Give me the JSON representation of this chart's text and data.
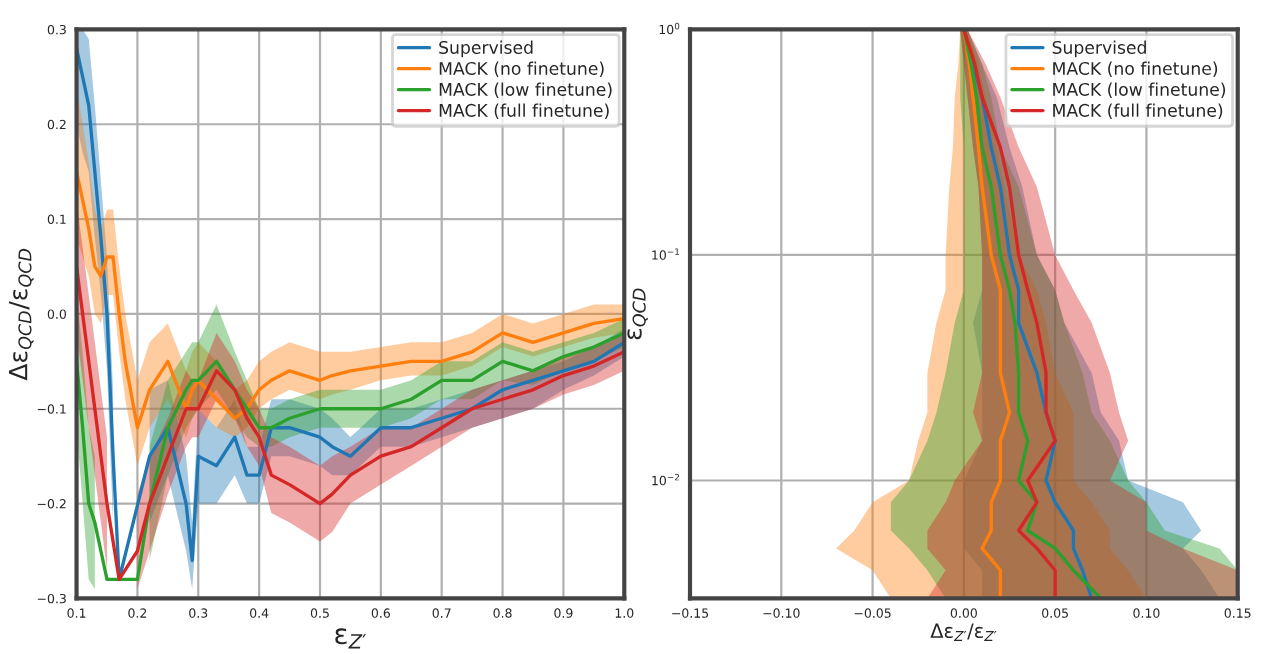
{
  "chart_data": [
    {
      "type": "line",
      "xlabel": "ε$_{Z′}$",
      "ylabel": "Δε$_{QCD}$/ε$_{QCD}$",
      "grid": true,
      "legend": "top right",
      "marker": "none",
      "line_style": "solid",
      "x": [
        0.1,
        0.11,
        0.12,
        0.13,
        0.14,
        0.15,
        0.16,
        0.17,
        0.18,
        0.2,
        0.22,
        0.25,
        0.28,
        0.29,
        0.3,
        0.33,
        0.36,
        0.38,
        0.4,
        0.42,
        0.45,
        0.5,
        0.52,
        0.55,
        0.6,
        0.65,
        0.7,
        0.75,
        0.8,
        0.85,
        0.9,
        0.95,
        1.0
      ],
      "xlim": [
        0.1,
        1.0
      ],
      "xticks": [
        0.1,
        0.2,
        0.3,
        0.4,
        0.5,
        0.6,
        0.7,
        0.8,
        0.9,
        {
          "value": 1,
          "label": "1.0"
        }
      ],
      "ylim": [
        -0.3,
        0.3
      ],
      "yticks": [
        {
          "value": -0.3,
          "label": "−0.3"
        },
        {
          "value": -0.2,
          "label": "−0.2"
        },
        {
          "value": -0.1,
          "label": "−0.1"
        },
        {
          "value": 0,
          "label": "0.0"
        },
        0.1,
        0.2,
        0.3
      ],
      "series": [
        {
          "name": "Supervised",
          "color": "#1f77b4",
          "values": [
            0.28,
            0.25,
            0.22,
            0.15,
            0.08,
            0.0,
            -0.15,
            -0.28,
            null,
            null,
            -0.15,
            -0.12,
            -0.2,
            -0.26,
            -0.15,
            -0.16,
            -0.13,
            -0.17,
            -0.17,
            -0.12,
            -0.12,
            -0.13,
            -0.14,
            -0.15,
            -0.12,
            -0.12,
            -0.11,
            -0.1,
            -0.08,
            -0.07,
            -0.06,
            -0.05,
            -0.03
          ],
          "lower": [
            0.2,
            0.17,
            0.15,
            0.08,
            0.02,
            -0.06,
            -0.22,
            null,
            null,
            null,
            -0.22,
            -0.17,
            -0.25,
            -0.29,
            -0.2,
            -0.2,
            -0.17,
            -0.2,
            -0.2,
            -0.15,
            -0.15,
            -0.16,
            -0.17,
            -0.17,
            -0.14,
            -0.14,
            -0.13,
            -0.12,
            -0.11,
            -0.1,
            -0.08,
            -0.065,
            -0.045
          ],
          "upper": [
            0.3,
            0.3,
            0.29,
            0.22,
            0.14,
            0.06,
            -0.08,
            null,
            null,
            null,
            -0.08,
            -0.07,
            -0.15,
            -0.22,
            -0.1,
            -0.12,
            -0.09,
            -0.14,
            -0.14,
            -0.09,
            -0.09,
            -0.1,
            -0.11,
            -0.13,
            -0.1,
            -0.1,
            -0.09,
            -0.08,
            -0.07,
            -0.06,
            -0.05,
            -0.035,
            -0.015
          ]
        },
        {
          "name": "MACK (no finetune)",
          "color": "#ff7f0e",
          "values": [
            0.15,
            0.12,
            0.09,
            0.05,
            0.04,
            0.06,
            0.06,
            0.0,
            -0.05,
            -0.12,
            -0.08,
            -0.05,
            -0.1,
            -0.08,
            -0.07,
            -0.09,
            -0.11,
            -0.1,
            -0.08,
            -0.07,
            -0.06,
            -0.07,
            -0.065,
            -0.06,
            -0.055,
            -0.05,
            -0.05,
            -0.04,
            -0.02,
            -0.03,
            -0.02,
            -0.01,
            -0.005
          ],
          "lower": [
            0.08,
            0.06,
            0.04,
            0.0,
            -0.01,
            0.02,
            0.02,
            -0.04,
            -0.09,
            -0.16,
            -0.12,
            -0.09,
            -0.13,
            -0.11,
            -0.1,
            -0.12,
            -0.13,
            -0.12,
            -0.1,
            -0.09,
            -0.08,
            -0.09,
            -0.085,
            -0.08,
            -0.07,
            -0.065,
            -0.065,
            -0.055,
            -0.035,
            -0.045,
            -0.035,
            -0.025,
            -0.02
          ],
          "upper": [
            0.24,
            0.2,
            0.16,
            0.11,
            0.09,
            0.11,
            0.11,
            0.05,
            0.0,
            -0.07,
            -0.03,
            -0.01,
            -0.06,
            -0.04,
            -0.03,
            -0.05,
            -0.08,
            -0.07,
            -0.05,
            -0.04,
            -0.03,
            -0.04,
            -0.04,
            -0.04,
            -0.035,
            -0.03,
            -0.03,
            -0.02,
            0.0,
            -0.01,
            0.0,
            0.01,
            0.01
          ]
        },
        {
          "name": "MACK (low finetune)",
          "color": "#2ca02c",
          "values": [
            -0.05,
            -0.12,
            -0.2,
            -0.22,
            -0.25,
            -0.28,
            null,
            null,
            null,
            -0.28,
            -0.2,
            -0.12,
            -0.08,
            -0.07,
            -0.07,
            -0.05,
            -0.08,
            -0.1,
            -0.12,
            -0.12,
            -0.11,
            -0.1,
            -0.1,
            -0.1,
            -0.1,
            -0.09,
            -0.07,
            -0.07,
            -0.05,
            -0.06,
            -0.045,
            -0.035,
            -0.02
          ],
          "lower": [
            -0.12,
            -0.2,
            -0.28,
            -0.29,
            null,
            null,
            null,
            null,
            null,
            null,
            -0.26,
            -0.17,
            -0.12,
            -0.11,
            -0.1,
            -0.08,
            -0.11,
            -0.13,
            -0.14,
            -0.14,
            -0.13,
            -0.12,
            -0.12,
            -0.12,
            -0.12,
            -0.11,
            -0.09,
            -0.09,
            -0.07,
            -0.075,
            -0.06,
            -0.05,
            -0.035
          ],
          "upper": [
            0.02,
            -0.04,
            -0.12,
            -0.15,
            null,
            null,
            null,
            null,
            null,
            null,
            -0.14,
            -0.07,
            -0.04,
            -0.03,
            -0.03,
            0.01,
            -0.04,
            -0.07,
            -0.1,
            -0.1,
            -0.09,
            -0.08,
            -0.08,
            -0.08,
            -0.08,
            -0.07,
            -0.05,
            -0.05,
            -0.03,
            -0.04,
            -0.03,
            -0.02,
            -0.005
          ]
        },
        {
          "name": "MACK (full finetune)",
          "color": "#d62728",
          "values": [
            0.05,
            0.0,
            -0.05,
            -0.1,
            -0.15,
            -0.2,
            -0.24,
            -0.28,
            -0.27,
            -0.25,
            -0.2,
            -0.15,
            -0.1,
            -0.1,
            -0.1,
            -0.06,
            -0.08,
            -0.11,
            -0.13,
            -0.17,
            -0.18,
            -0.2,
            -0.19,
            -0.17,
            -0.15,
            -0.14,
            -0.12,
            -0.1,
            -0.09,
            -0.08,
            -0.065,
            -0.055,
            -0.04
          ],
          "lower": [
            -0.02,
            -0.07,
            -0.12,
            -0.17,
            -0.22,
            -0.27,
            null,
            null,
            null,
            -0.29,
            -0.25,
            -0.19,
            -0.14,
            -0.13,
            -0.13,
            -0.09,
            -0.11,
            -0.14,
            -0.16,
            -0.21,
            -0.22,
            -0.24,
            -0.23,
            -0.2,
            -0.18,
            -0.16,
            -0.14,
            -0.12,
            -0.11,
            -0.1,
            -0.085,
            -0.075,
            -0.06
          ],
          "upper": [
            0.12,
            0.07,
            0.02,
            -0.03,
            -0.08,
            -0.13,
            null,
            null,
            null,
            -0.19,
            -0.15,
            -0.11,
            -0.06,
            -0.07,
            -0.07,
            -0.02,
            -0.05,
            -0.08,
            -0.1,
            -0.13,
            -0.14,
            -0.16,
            -0.15,
            -0.14,
            -0.12,
            -0.12,
            -0.1,
            -0.08,
            -0.07,
            -0.06,
            -0.045,
            -0.035,
            -0.02
          ]
        }
      ]
    },
    {
      "type": "line",
      "orientation": "horizontal",
      "xlabel": "Δε$_{Z′}$/ε$_{Z′}$",
      "ylabel": "ε$_{QCD}$",
      "grid": true,
      "legend": "top right",
      "marker": "none",
      "line_style": "solid",
      "log": "y",
      "x": [
        1,
        0.7,
        0.5,
        0.3,
        0.2,
        0.1,
        0.07,
        0.05,
        0.03,
        0.02,
        0.015,
        0.01,
        0.008,
        0.006,
        0.005,
        0.004,
        0.003
      ],
      "xlim": [
        -0.15,
        0.15
      ],
      "xticks": [
        {
          "value": -0.15,
          "label": "−0.15"
        },
        {
          "value": -0.1,
          "label": "−0.10"
        },
        {
          "value": -0.05,
          "label": "−0.05"
        },
        {
          "value": 0,
          "label": "0.00"
        },
        {
          "value": 0.05,
          "label": "0.05"
        },
        {
          "value": 0.1,
          "label": "0.10"
        },
        {
          "value": 0.15,
          "label": "0.15"
        }
      ],
      "ylim": [
        0.003,
        1
      ],
      "yticks": [
        {
          "value": 0.01,
          "label": "10$^{−2}$"
        },
        {
          "value": 0.1,
          "label": "10$^{−1}$"
        },
        {
          "value": 1,
          "label": "10$^{0}$"
        }
      ],
      "series": [
        {
          "name": "Supervised",
          "color": "#1f77b4",
          "values": [
            0,
            0.005,
            0.01,
            0.015,
            0.02,
            0.025,
            0.03,
            0.03,
            0.04,
            0.045,
            0.05,
            0.045,
            0.05,
            0.06,
            0.06,
            0.065,
            0.07
          ],
          "lower": [
            -0.002,
            0.0,
            0.002,
            0.005,
            0.008,
            0.01,
            0.01,
            0.005,
            0.01,
            0.01,
            0.01,
            0.0,
            0.0,
            0.0,
            0.0,
            0.01,
            0.01
          ],
          "upper": [
            0.002,
            0.01,
            0.018,
            0.025,
            0.032,
            0.04,
            0.05,
            0.055,
            0.07,
            0.075,
            0.085,
            0.09,
            0.12,
            0.13,
            0.12,
            0.13,
            0.14
          ]
        },
        {
          "name": "MACK (no finetune)",
          "color": "#ff7f0e",
          "values": [
            0,
            0.003,
            0.005,
            0.008,
            0.01,
            0.015,
            0.02,
            0.02,
            0.02,
            0.025,
            0.02,
            0.02,
            0.015,
            0.015,
            0.01,
            0.02,
            0.02
          ],
          "lower": [
            -0.002,
            -0.003,
            -0.005,
            -0.006,
            -0.008,
            -0.01,
            -0.01,
            -0.015,
            -0.02,
            -0.02,
            -0.025,
            -0.03,
            -0.05,
            -0.06,
            -0.07,
            -0.05,
            -0.04
          ],
          "upper": [
            0.002,
            0.008,
            0.012,
            0.018,
            0.022,
            0.03,
            0.04,
            0.045,
            0.05,
            0.06,
            0.06,
            0.06,
            0.07,
            0.08,
            0.08,
            0.09,
            0.1
          ]
        },
        {
          "name": "MACK (low finetune)",
          "color": "#2ca02c",
          "values": [
            0,
            0.004,
            0.007,
            0.01,
            0.015,
            0.02,
            0.025,
            0.028,
            0.03,
            0.03,
            0.035,
            0.03,
            0.04,
            0.035,
            0.05,
            0.06,
            0.075
          ],
          "lower": [
            -0.002,
            -0.002,
            -0.002,
            0.0,
            0.0,
            0.0,
            0.0,
            -0.005,
            -0.01,
            -0.015,
            -0.02,
            -0.03,
            -0.04,
            -0.04,
            -0.03,
            -0.02,
            -0.01
          ],
          "upper": [
            0.002,
            0.01,
            0.015,
            0.02,
            0.03,
            0.04,
            0.05,
            0.055,
            0.065,
            0.07,
            0.08,
            0.09,
            0.1,
            0.11,
            0.14,
            0.15,
            0.15
          ]
        },
        {
          "name": "MACK (full finetune)",
          "color": "#d62728",
          "values": [
            0,
            0.006,
            0.01,
            0.02,
            0.025,
            0.03,
            0.035,
            0.04,
            0.045,
            0.045,
            0.05,
            0.035,
            0.04,
            0.03,
            0.04,
            0.05,
            0.05
          ],
          "lower": [
            -0.002,
            0.0,
            0.002,
            0.005,
            0.008,
            0.01,
            0.01,
            0.01,
            0.01,
            0.005,
            0.01,
            -0.005,
            -0.01,
            -0.02,
            -0.02,
            -0.01,
            -0.02
          ],
          "upper": [
            0.002,
            0.012,
            0.02,
            0.03,
            0.04,
            0.05,
            0.06,
            0.07,
            0.08,
            0.085,
            0.09,
            0.08,
            0.1,
            0.1,
            0.12,
            0.15,
            0.15
          ]
        }
      ]
    }
  ]
}
